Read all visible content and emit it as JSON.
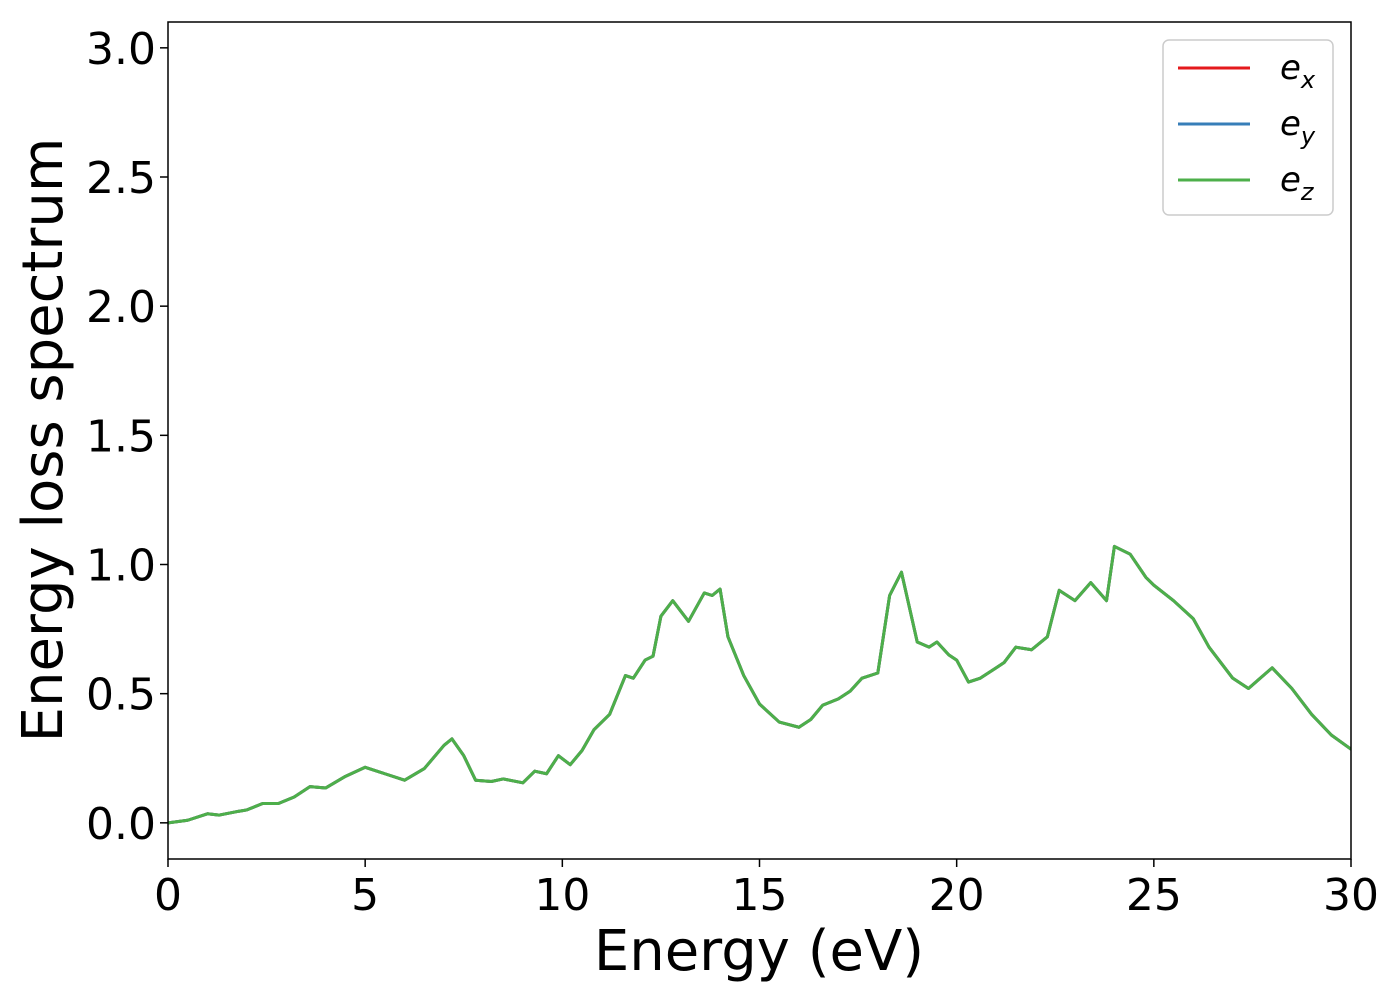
{
  "chart_data": {
    "type": "line",
    "xlabel": "Energy (eV)",
    "ylabel": "Energy loss spectrum",
    "xlim": [
      0,
      30
    ],
    "ylim": [
      -0.14,
      3.1
    ],
    "xticks": [
      0,
      5,
      10,
      15,
      20,
      25,
      30
    ],
    "xtick_labels": [
      "0",
      "5",
      "10",
      "15",
      "20",
      "25",
      "30"
    ],
    "yticks": [
      0.0,
      0.5,
      1.0,
      1.5,
      2.0,
      2.5,
      3.0
    ],
    "ytick_labels": [
      "0.0",
      "0.5",
      "1.0",
      "1.5",
      "2.0",
      "2.5",
      "3.0"
    ],
    "grid": false,
    "legend_position": "top-right",
    "x": [
      0,
      0.5,
      1.0,
      1.3,
      1.8,
      2.0,
      2.4,
      2.8,
      3.2,
      3.6,
      4.0,
      4.5,
      5.0,
      5.5,
      6.0,
      6.5,
      7.0,
      7.2,
      7.5,
      7.8,
      8.2,
      8.5,
      9.0,
      9.3,
      9.6,
      9.9,
      10.2,
      10.5,
      10.8,
      11.2,
      11.6,
      11.8,
      12.1,
      12.3,
      12.5,
      12.8,
      13.2,
      13.6,
      13.8,
      14.0,
      14.2,
      14.6,
      15.0,
      15.5,
      16.0,
      16.3,
      16.6,
      17.0,
      17.3,
      17.6,
      18.0,
      18.3,
      18.6,
      19.0,
      19.3,
      19.5,
      19.8,
      20.0,
      20.3,
      20.6,
      21.0,
      21.2,
      21.5,
      21.9,
      22.3,
      22.6,
      23.0,
      23.4,
      23.8,
      24.0,
      24.4,
      24.8,
      25.0,
      25.5,
      26.0,
      26.4,
      27.0,
      27.4,
      27.7,
      28.0,
      28.5,
      29.0,
      29.5,
      30.0
    ],
    "series": [
      {
        "name": "e_x",
        "legend_main": "e",
        "legend_sub": "x",
        "color": "#e41a1c",
        "y": [
          0.0,
          0.01,
          0.035,
          0.03,
          0.045,
          0.05,
          0.075,
          0.075,
          0.1,
          0.14,
          0.135,
          0.18,
          0.215,
          0.19,
          0.165,
          0.21,
          0.3,
          0.325,
          0.26,
          0.165,
          0.16,
          0.17,
          0.155,
          0.2,
          0.19,
          0.26,
          0.225,
          0.28,
          0.36,
          0.42,
          0.57,
          0.56,
          0.63,
          0.645,
          0.8,
          0.86,
          0.78,
          0.89,
          0.88,
          0.905,
          0.72,
          0.57,
          0.46,
          0.39,
          0.37,
          0.4,
          0.455,
          0.48,
          0.51,
          0.56,
          0.58,
          0.88,
          0.97,
          0.7,
          0.68,
          0.7,
          0.65,
          0.63,
          0.545,
          0.56,
          0.6,
          0.62,
          0.68,
          0.67,
          0.72,
          0.9,
          0.86,
          0.93,
          0.86,
          1.07,
          1.04,
          0.95,
          0.92,
          0.86,
          0.79,
          0.68,
          0.56,
          0.52,
          0.56,
          0.6,
          0.52,
          0.42,
          0.34,
          0.285
        ]
      },
      {
        "name": "e_y",
        "legend_main": "e",
        "legend_sub": "y",
        "color": "#377eb8",
        "y": [
          0.0,
          0.01,
          0.035,
          0.03,
          0.045,
          0.05,
          0.075,
          0.075,
          0.1,
          0.14,
          0.135,
          0.18,
          0.215,
          0.19,
          0.165,
          0.21,
          0.3,
          0.325,
          0.26,
          0.165,
          0.16,
          0.17,
          0.155,
          0.2,
          0.19,
          0.26,
          0.225,
          0.28,
          0.36,
          0.42,
          0.57,
          0.56,
          0.63,
          0.645,
          0.8,
          0.86,
          0.78,
          0.89,
          0.88,
          0.905,
          0.72,
          0.57,
          0.46,
          0.39,
          0.37,
          0.4,
          0.455,
          0.48,
          0.51,
          0.56,
          0.58,
          0.88,
          0.97,
          0.7,
          0.68,
          0.7,
          0.65,
          0.63,
          0.545,
          0.56,
          0.6,
          0.62,
          0.68,
          0.67,
          0.72,
          0.9,
          0.86,
          0.93,
          0.86,
          1.07,
          1.04,
          0.95,
          0.92,
          0.86,
          0.79,
          0.68,
          0.56,
          0.52,
          0.56,
          0.6,
          0.52,
          0.42,
          0.34,
          0.285
        ]
      },
      {
        "name": "e_z",
        "legend_main": "e",
        "legend_sub": "z",
        "color": "#4daf4a",
        "y": [
          0.0,
          0.01,
          0.035,
          0.03,
          0.045,
          0.05,
          0.075,
          0.075,
          0.1,
          0.14,
          0.135,
          0.18,
          0.215,
          0.19,
          0.165,
          0.21,
          0.3,
          0.325,
          0.26,
          0.165,
          0.16,
          0.17,
          0.155,
          0.2,
          0.19,
          0.26,
          0.225,
          0.28,
          0.36,
          0.42,
          0.57,
          0.56,
          0.63,
          0.645,
          0.8,
          0.86,
          0.78,
          0.89,
          0.88,
          0.905,
          0.72,
          0.57,
          0.46,
          0.39,
          0.37,
          0.4,
          0.455,
          0.48,
          0.51,
          0.56,
          0.58,
          0.88,
          0.97,
          0.7,
          0.68,
          0.7,
          0.65,
          0.63,
          0.545,
          0.56,
          0.6,
          0.62,
          0.68,
          0.67,
          0.72,
          0.9,
          0.86,
          0.93,
          0.86,
          1.07,
          1.04,
          0.95,
          0.92,
          0.86,
          0.79,
          0.68,
          0.56,
          0.52,
          0.56,
          0.6,
          0.52,
          0.42,
          0.34,
          0.285
        ]
      }
    ]
  }
}
